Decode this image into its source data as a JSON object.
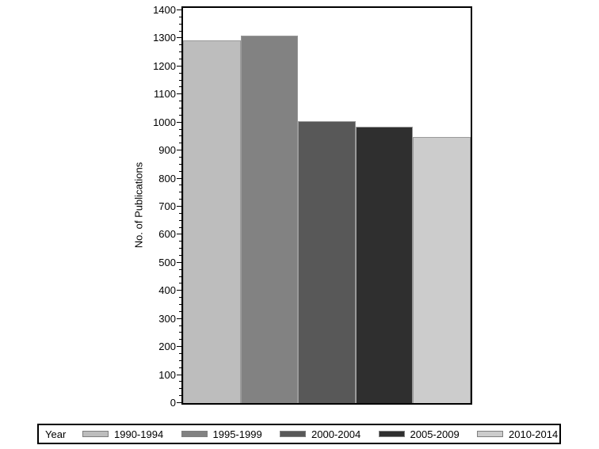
{
  "page": {
    "background": "#ffffff"
  },
  "chart_data": {
    "type": "bar",
    "title": "",
    "xlabel": "",
    "ylabel": "No. of Publications",
    "ylim": [
      0,
      1400
    ],
    "y_major_tick_step": 100,
    "y_minor_tick_step": 25,
    "grid": false,
    "legend_title": "Year",
    "legend_position": "bottom",
    "categories": [
      "1990-1994",
      "1995-1999",
      "2000-2004",
      "2005-2009",
      "2010-2014"
    ],
    "values": [
      1292,
      1310,
      1004,
      986,
      948
    ],
    "bar_colors": [
      "#bdbdbd",
      "#828282",
      "#585858",
      "#2f2f2f",
      "#cccccc"
    ],
    "bar_outline_color": "#9a9a9a",
    "axis_color": "#000000",
    "text_color": "#000000"
  }
}
